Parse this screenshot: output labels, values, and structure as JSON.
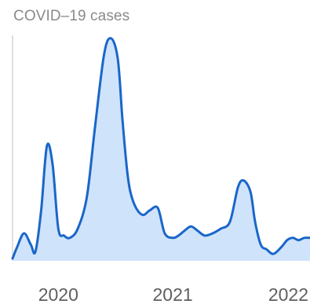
{
  "chart_data": {
    "type": "area",
    "title": "COVID–19 cases",
    "xlabel": "",
    "ylabel": "",
    "x_ticks": [
      {
        "label": "2020",
        "x": 2020.0
      },
      {
        "label": "2021",
        "x": 2021.0
      },
      {
        "label": "2022",
        "x": 2022.0
      }
    ],
    "xlim": [
      2019.6,
      2022.2
    ],
    "ylim": [
      0,
      100
    ],
    "grid": false,
    "legend": "none",
    "colors": {
      "line": "#1a66c9",
      "fill": "#cfe3fb",
      "axis": "#d6d6d6"
    },
    "series": [
      {
        "x": [
          2019.6,
          2019.64,
          2019.7,
          2019.76,
          2019.8,
          2019.85,
          2019.9,
          2019.95,
          2020.0,
          2020.05,
          2020.1,
          2020.17,
          2020.25,
          2020.32,
          2020.4,
          2020.46,
          2020.52,
          2020.56,
          2020.6,
          2020.63,
          2020.68,
          2020.74,
          2020.8,
          2020.87,
          2020.93,
          2021.0,
          2021.05,
          2021.1,
          2021.16,
          2021.22,
          2021.28,
          2021.35,
          2021.42,
          2021.5,
          2021.57,
          2021.62,
          2021.68,
          2021.72,
          2021.77,
          2021.82,
          2021.88,
          2021.95,
          2022.0,
          2022.05,
          2022.1,
          2022.15,
          2022.2
        ],
        "values": [
          1,
          6,
          12,
          7,
          4,
          22,
          50,
          42,
          14,
          11,
          10,
          14,
          28,
          58,
          90,
          97,
          88,
          62,
          40,
          30,
          23,
          20,
          22,
          23,
          12,
          10,
          11,
          13,
          15,
          13,
          11,
          12,
          14,
          17,
          32,
          35,
          30,
          17,
          7,
          5,
          3,
          6,
          9,
          10,
          9,
          10,
          10
        ]
      }
    ]
  }
}
